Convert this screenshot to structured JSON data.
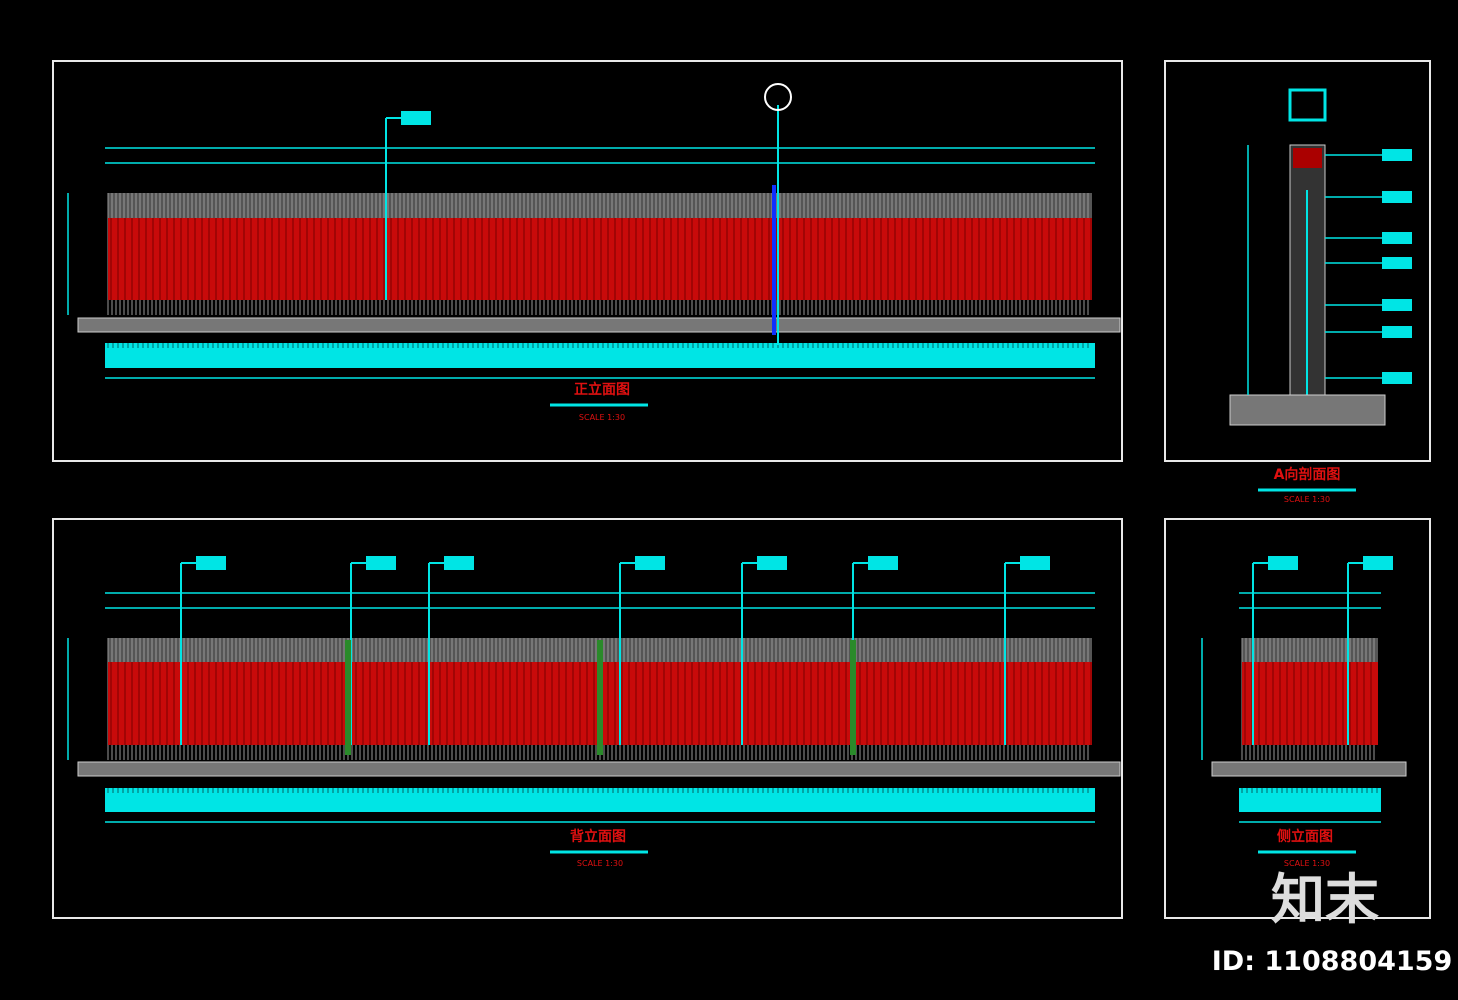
{
  "views": [
    {
      "title": "正立面图",
      "scale": "SCALE 1:30"
    },
    {
      "title": "A向剖面图",
      "scale": "SCALE 1:30"
    },
    {
      "title": "背立面图",
      "scale": "SCALE 1:30"
    },
    {
      "title": "侧立面图",
      "scale": "SCALE 1:30"
    }
  ],
  "watermark": {
    "logo": "知末",
    "id": "ID: 1108804159"
  }
}
